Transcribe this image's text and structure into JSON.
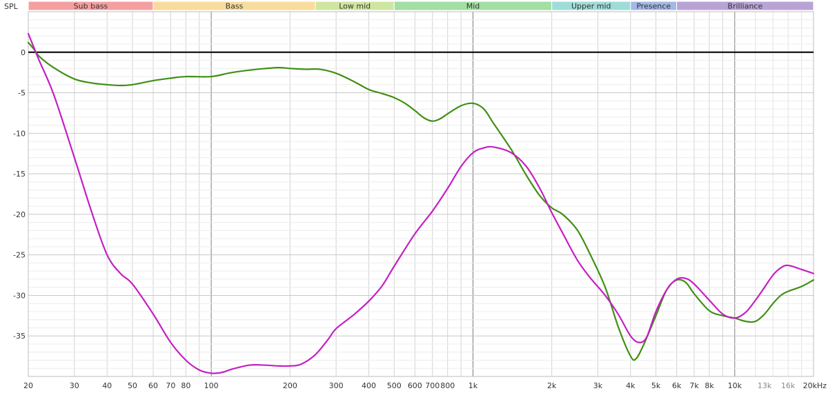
{
  "chart_data": {
    "type": "line",
    "title": "",
    "ylabel": "SPL",
    "xlabel": "",
    "x_scale": "log",
    "xlim": [
      20,
      20000
    ],
    "ylim": [
      -40,
      5
    ],
    "y_ticks": [
      0,
      -5,
      -10,
      -15,
      -20,
      -25,
      -30,
      -35
    ],
    "x_ticks": [
      {
        "value": 20,
        "label": "20"
      },
      {
        "value": 30,
        "label": "30"
      },
      {
        "value": 40,
        "label": "40"
      },
      {
        "value": 50,
        "label": "50"
      },
      {
        "value": 60,
        "label": "60"
      },
      {
        "value": 70,
        "label": "70"
      },
      {
        "value": 80,
        "label": "80"
      },
      {
        "value": 100,
        "label": "100"
      },
      {
        "value": 200,
        "label": "200"
      },
      {
        "value": 300,
        "label": "300"
      },
      {
        "value": 400,
        "label": "400"
      },
      {
        "value": 500,
        "label": "500"
      },
      {
        "value": 600,
        "label": "600"
      },
      {
        "value": 700,
        "label": "700"
      },
      {
        "value": 800,
        "label": "800"
      },
      {
        "value": 1000,
        "label": "1k"
      },
      {
        "value": 2000,
        "label": "2k"
      },
      {
        "value": 3000,
        "label": "3k"
      },
      {
        "value": 4000,
        "label": "4k"
      },
      {
        "value": 5000,
        "label": "5k"
      },
      {
        "value": 6000,
        "label": "6k"
      },
      {
        "value": 7000,
        "label": "7k"
      },
      {
        "value": 8000,
        "label": "8k"
      },
      {
        "value": 10000,
        "label": "10k"
      },
      {
        "value": 13000,
        "label": "13k",
        "faded": true
      },
      {
        "value": 16000,
        "label": "16k",
        "faded": true
      },
      {
        "value": 20000,
        "label": "20kHz"
      }
    ],
    "grid": true,
    "legend": "none",
    "bands": [
      {
        "name": "Sub bass",
        "from": 20,
        "to": 60,
        "color": "#f4a0a0"
      },
      {
        "name": "Bass",
        "from": 60,
        "to": 250,
        "color": "#f8dc9c"
      },
      {
        "name": "Low mid",
        "from": 250,
        "to": 500,
        "color": "#cfe6a0"
      },
      {
        "name": "Mid",
        "from": 500,
        "to": 2000,
        "color": "#a3dea3"
      },
      {
        "name": "Upper mid",
        "from": 2000,
        "to": 4000,
        "color": "#9fdcd8"
      },
      {
        "name": "Presence",
        "from": 4000,
        "to": 6000,
        "color": "#a3b8e6"
      },
      {
        "name": "Brilliance",
        "from": 6000,
        "to": 20000,
        "color": "#b9a3d6"
      }
    ],
    "series": [
      {
        "color": "#3f8f12",
        "x": [
          20,
          21,
          22,
          25,
          30,
          35,
          40,
          45,
          50,
          60,
          70,
          80,
          100,
          120,
          150,
          180,
          200,
          230,
          260,
          300,
          350,
          400,
          450,
          500,
          550,
          600,
          650,
          700,
          750,
          800,
          900,
          1000,
          1100,
          1200,
          1400,
          1600,
          1800,
          2000,
          2200,
          2500,
          2800,
          3200,
          3600,
          4000,
          4200,
          4500,
          5000,
          5500,
          6000,
          6500,
          7000,
          8000,
          9000,
          10000,
          11000,
          12000,
          13000,
          14000,
          15000,
          16000,
          18000,
          20000
        ],
        "y": [
          1.2,
          0.4,
          -0.5,
          -1.9,
          -3.3,
          -3.8,
          -4.0,
          -4.1,
          -4.0,
          -3.5,
          -3.2,
          -3.0,
          -3.0,
          -2.5,
          -2.1,
          -1.9,
          -2.0,
          -2.1,
          -2.1,
          -2.6,
          -3.6,
          -4.6,
          -5.1,
          -5.6,
          -6.3,
          -7.2,
          -8.1,
          -8.5,
          -8.2,
          -7.6,
          -6.6,
          -6.3,
          -7.0,
          -8.8,
          -12.0,
          -15.2,
          -17.7,
          -19.2,
          -20.0,
          -21.9,
          -24.9,
          -29.0,
          -34.0,
          -37.5,
          -37.8,
          -36.0,
          -32.5,
          -29.3,
          -28.1,
          -28.4,
          -29.8,
          -31.9,
          -32.5,
          -32.8,
          -33.2,
          -33.2,
          -32.3,
          -31.0,
          -30.0,
          -29.5,
          -28.9,
          -28.1
        ]
      },
      {
        "color": "#c41ec4",
        "x": [
          20,
          21,
          22,
          25,
          30,
          35,
          40,
          45,
          50,
          60,
          70,
          80,
          90,
          100,
          110,
          120,
          140,
          160,
          180,
          200,
          220,
          250,
          280,
          300,
          350,
          400,
          450,
          500,
          600,
          700,
          800,
          900,
          1000,
          1100,
          1200,
          1400,
          1600,
          1800,
          2000,
          2200,
          2500,
          2800,
          3200,
          3600,
          4000,
          4300,
          4600,
          5000,
          5500,
          6000,
          6500,
          7000,
          8000,
          9000,
          10000,
          11000,
          12000,
          13000,
          14000,
          15000,
          16000,
          18000,
          20000
        ],
        "y": [
          2.3,
          0.6,
          -1.0,
          -5.2,
          -13.0,
          -19.8,
          -25.0,
          -27.3,
          -28.6,
          -32.3,
          -35.8,
          -38.0,
          -39.2,
          -39.6,
          -39.5,
          -39.1,
          -38.6,
          -38.6,
          -38.7,
          -38.7,
          -38.5,
          -37.3,
          -35.4,
          -34.1,
          -32.4,
          -30.7,
          -28.8,
          -26.4,
          -22.4,
          -19.6,
          -16.8,
          -14.1,
          -12.4,
          -11.8,
          -11.7,
          -12.4,
          -14.1,
          -16.8,
          -19.8,
          -22.3,
          -25.6,
          -27.8,
          -30.0,
          -32.4,
          -35.0,
          -35.8,
          -35.2,
          -32.0,
          -29.3,
          -28.0,
          -27.9,
          -28.6,
          -30.6,
          -32.3,
          -32.8,
          -32.1,
          -30.6,
          -29.0,
          -27.5,
          -26.6,
          -26.3,
          -26.8,
          -27.3
        ]
      }
    ]
  }
}
